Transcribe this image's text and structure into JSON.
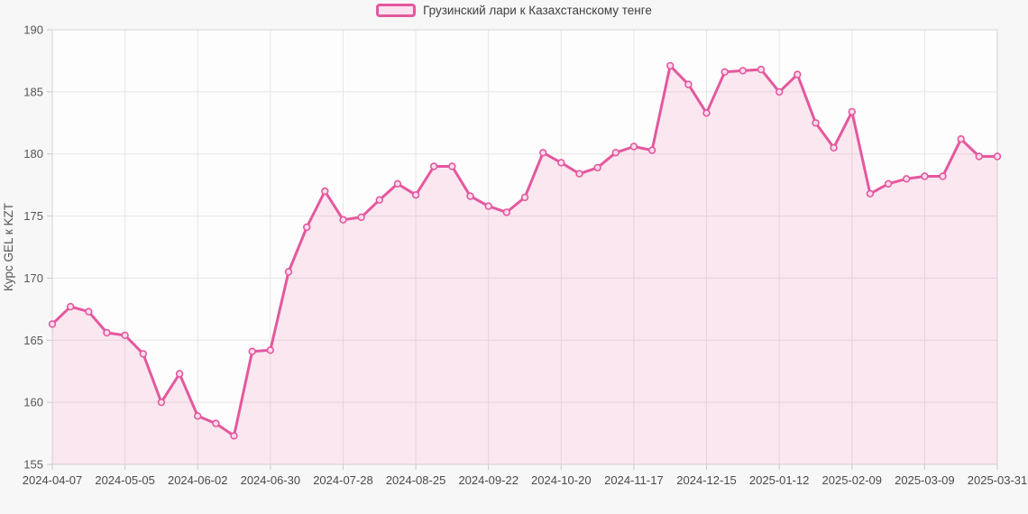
{
  "legend": {
    "label": "Грузинский лари к Казахстанскому тенге"
  },
  "colors": {
    "line": "#e4589e",
    "area_fill": "rgba(228,88,158,0.13)",
    "marker_fill": "#fadcec",
    "swatch_fill": "#fbe3ef",
    "plot_background": "#fdfdfd",
    "page_background": "#f7f7f7",
    "gridline": "#e5e5e5",
    "border": "#d4d4d4",
    "tick": "#c9c9c9",
    "y_label_color": "#565656",
    "x_label_color": "#4a4a4a",
    "axis_title_color": "#555555"
  },
  "chart_data": {
    "type": "area",
    "title": "",
    "xlabel": "",
    "ylabel": "Курс GEL к KZT",
    "ylim": [
      155,
      190
    ],
    "y_ticks": [
      155,
      160,
      165,
      170,
      175,
      180,
      185,
      190
    ],
    "grid": true,
    "legend_position": "top",
    "label_every": 4,
    "categories": [
      "2024-04-07",
      "2024-04-14",
      "2024-04-21",
      "2024-04-28",
      "2024-05-05",
      "2024-05-12",
      "2024-05-19",
      "2024-05-26",
      "2024-06-02",
      "2024-06-09",
      "2024-06-16",
      "2024-06-23",
      "2024-06-30",
      "2024-07-07",
      "2024-07-14",
      "2024-07-21",
      "2024-07-28",
      "2024-08-04",
      "2024-08-11",
      "2024-08-18",
      "2024-08-25",
      "2024-09-01",
      "2024-09-08",
      "2024-09-15",
      "2024-09-22",
      "2024-09-29",
      "2024-10-06",
      "2024-10-13",
      "2024-10-20",
      "2024-10-27",
      "2024-11-03",
      "2024-11-10",
      "2024-11-17",
      "2024-11-24",
      "2024-12-01",
      "2024-12-08",
      "2024-12-15",
      "2024-12-22",
      "2024-12-29",
      "2025-01-05",
      "2025-01-12",
      "2025-01-19",
      "2025-01-26",
      "2025-02-02",
      "2025-02-09",
      "2025-02-16",
      "2025-02-23",
      "2025-03-02",
      "2025-03-09",
      "2025-03-16",
      "2025-03-23",
      "2025-03-30",
      "2025-03-31"
    ],
    "x_tick_labels": [
      "2024-04-07",
      "2024-05-05",
      "2024-06-02",
      "2024-06-30",
      "2024-07-28",
      "2024-08-25",
      "2024-09-22",
      "2024-10-20",
      "2024-11-17",
      "2024-12-15",
      "2025-01-12",
      "2025-02-09",
      "2025-03-09",
      "2025-03-31"
    ],
    "series": [
      {
        "name": "Грузинский лари к Казахстанскому тенге",
        "values": [
          166.3,
          167.7,
          167.3,
          165.6,
          165.4,
          163.9,
          160.0,
          162.3,
          158.9,
          158.3,
          157.3,
          164.1,
          164.2,
          170.5,
          174.1,
          177.0,
          174.7,
          174.9,
          176.3,
          177.6,
          176.7,
          179.0,
          179.0,
          176.6,
          175.8,
          175.3,
          176.5,
          180.1,
          179.3,
          178.4,
          178.9,
          180.1,
          180.6,
          180.3,
          187.1,
          185.6,
          183.3,
          186.6,
          186.7,
          186.8,
          185.0,
          186.4,
          182.5,
          180.5,
          183.4,
          176.8,
          177.6,
          178.0,
          178.2,
          178.2,
          181.2,
          179.8,
          179.8
        ]
      }
    ]
  }
}
